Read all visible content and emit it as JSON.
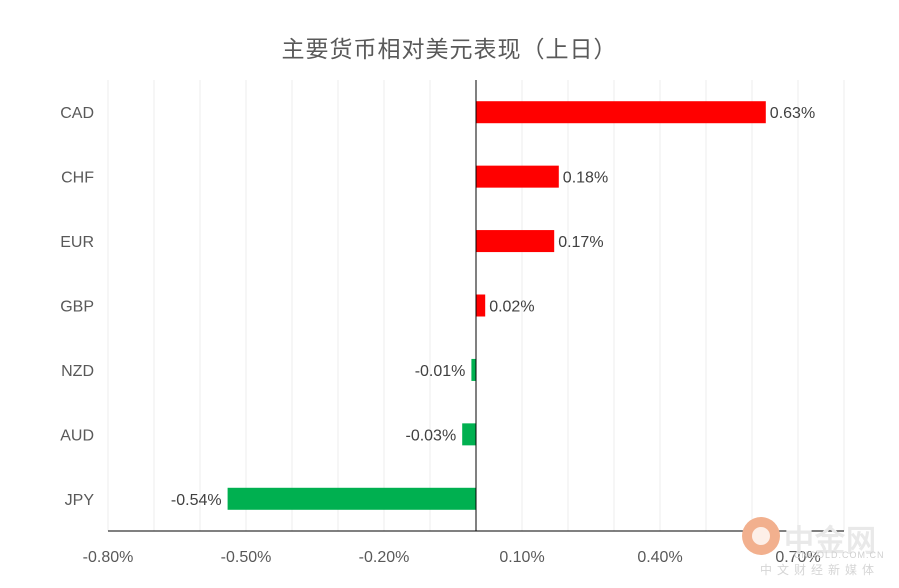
{
  "chart_data": {
    "type": "bar",
    "orientation": "horizontal",
    "title": "主要货币相对美元表现（上日）",
    "categories": [
      "CAD",
      "CHF",
      "EUR",
      "GBP",
      "NZD",
      "AUD",
      "JPY"
    ],
    "values": [
      0.63,
      0.18,
      0.17,
      0.02,
      -0.01,
      -0.03,
      -0.54
    ],
    "value_labels": [
      "0.63%",
      "0.18%",
      "0.17%",
      "0.02%",
      "-0.01%",
      "-0.03%",
      "-0.54%"
    ],
    "xlim": [
      -0.8,
      0.8
    ],
    "x_tick_values": [
      -0.8,
      -0.5,
      -0.2,
      0.1,
      0.4,
      0.7
    ],
    "x_tick_labels": [
      "-0.80%",
      "-0.50%",
      "-0.20%",
      "0.10%",
      "0.40%",
      "0.70%"
    ],
    "grid": true,
    "colors": {
      "positive": "#ff0000",
      "negative": "#00b050",
      "grid": "#ececec",
      "axis": "#000000",
      "text": "#595959"
    }
  },
  "watermark": {
    "name": "中金网",
    "url": "CNGOLD.COM.CN",
    "subtitle": "中文财经新媒体"
  }
}
